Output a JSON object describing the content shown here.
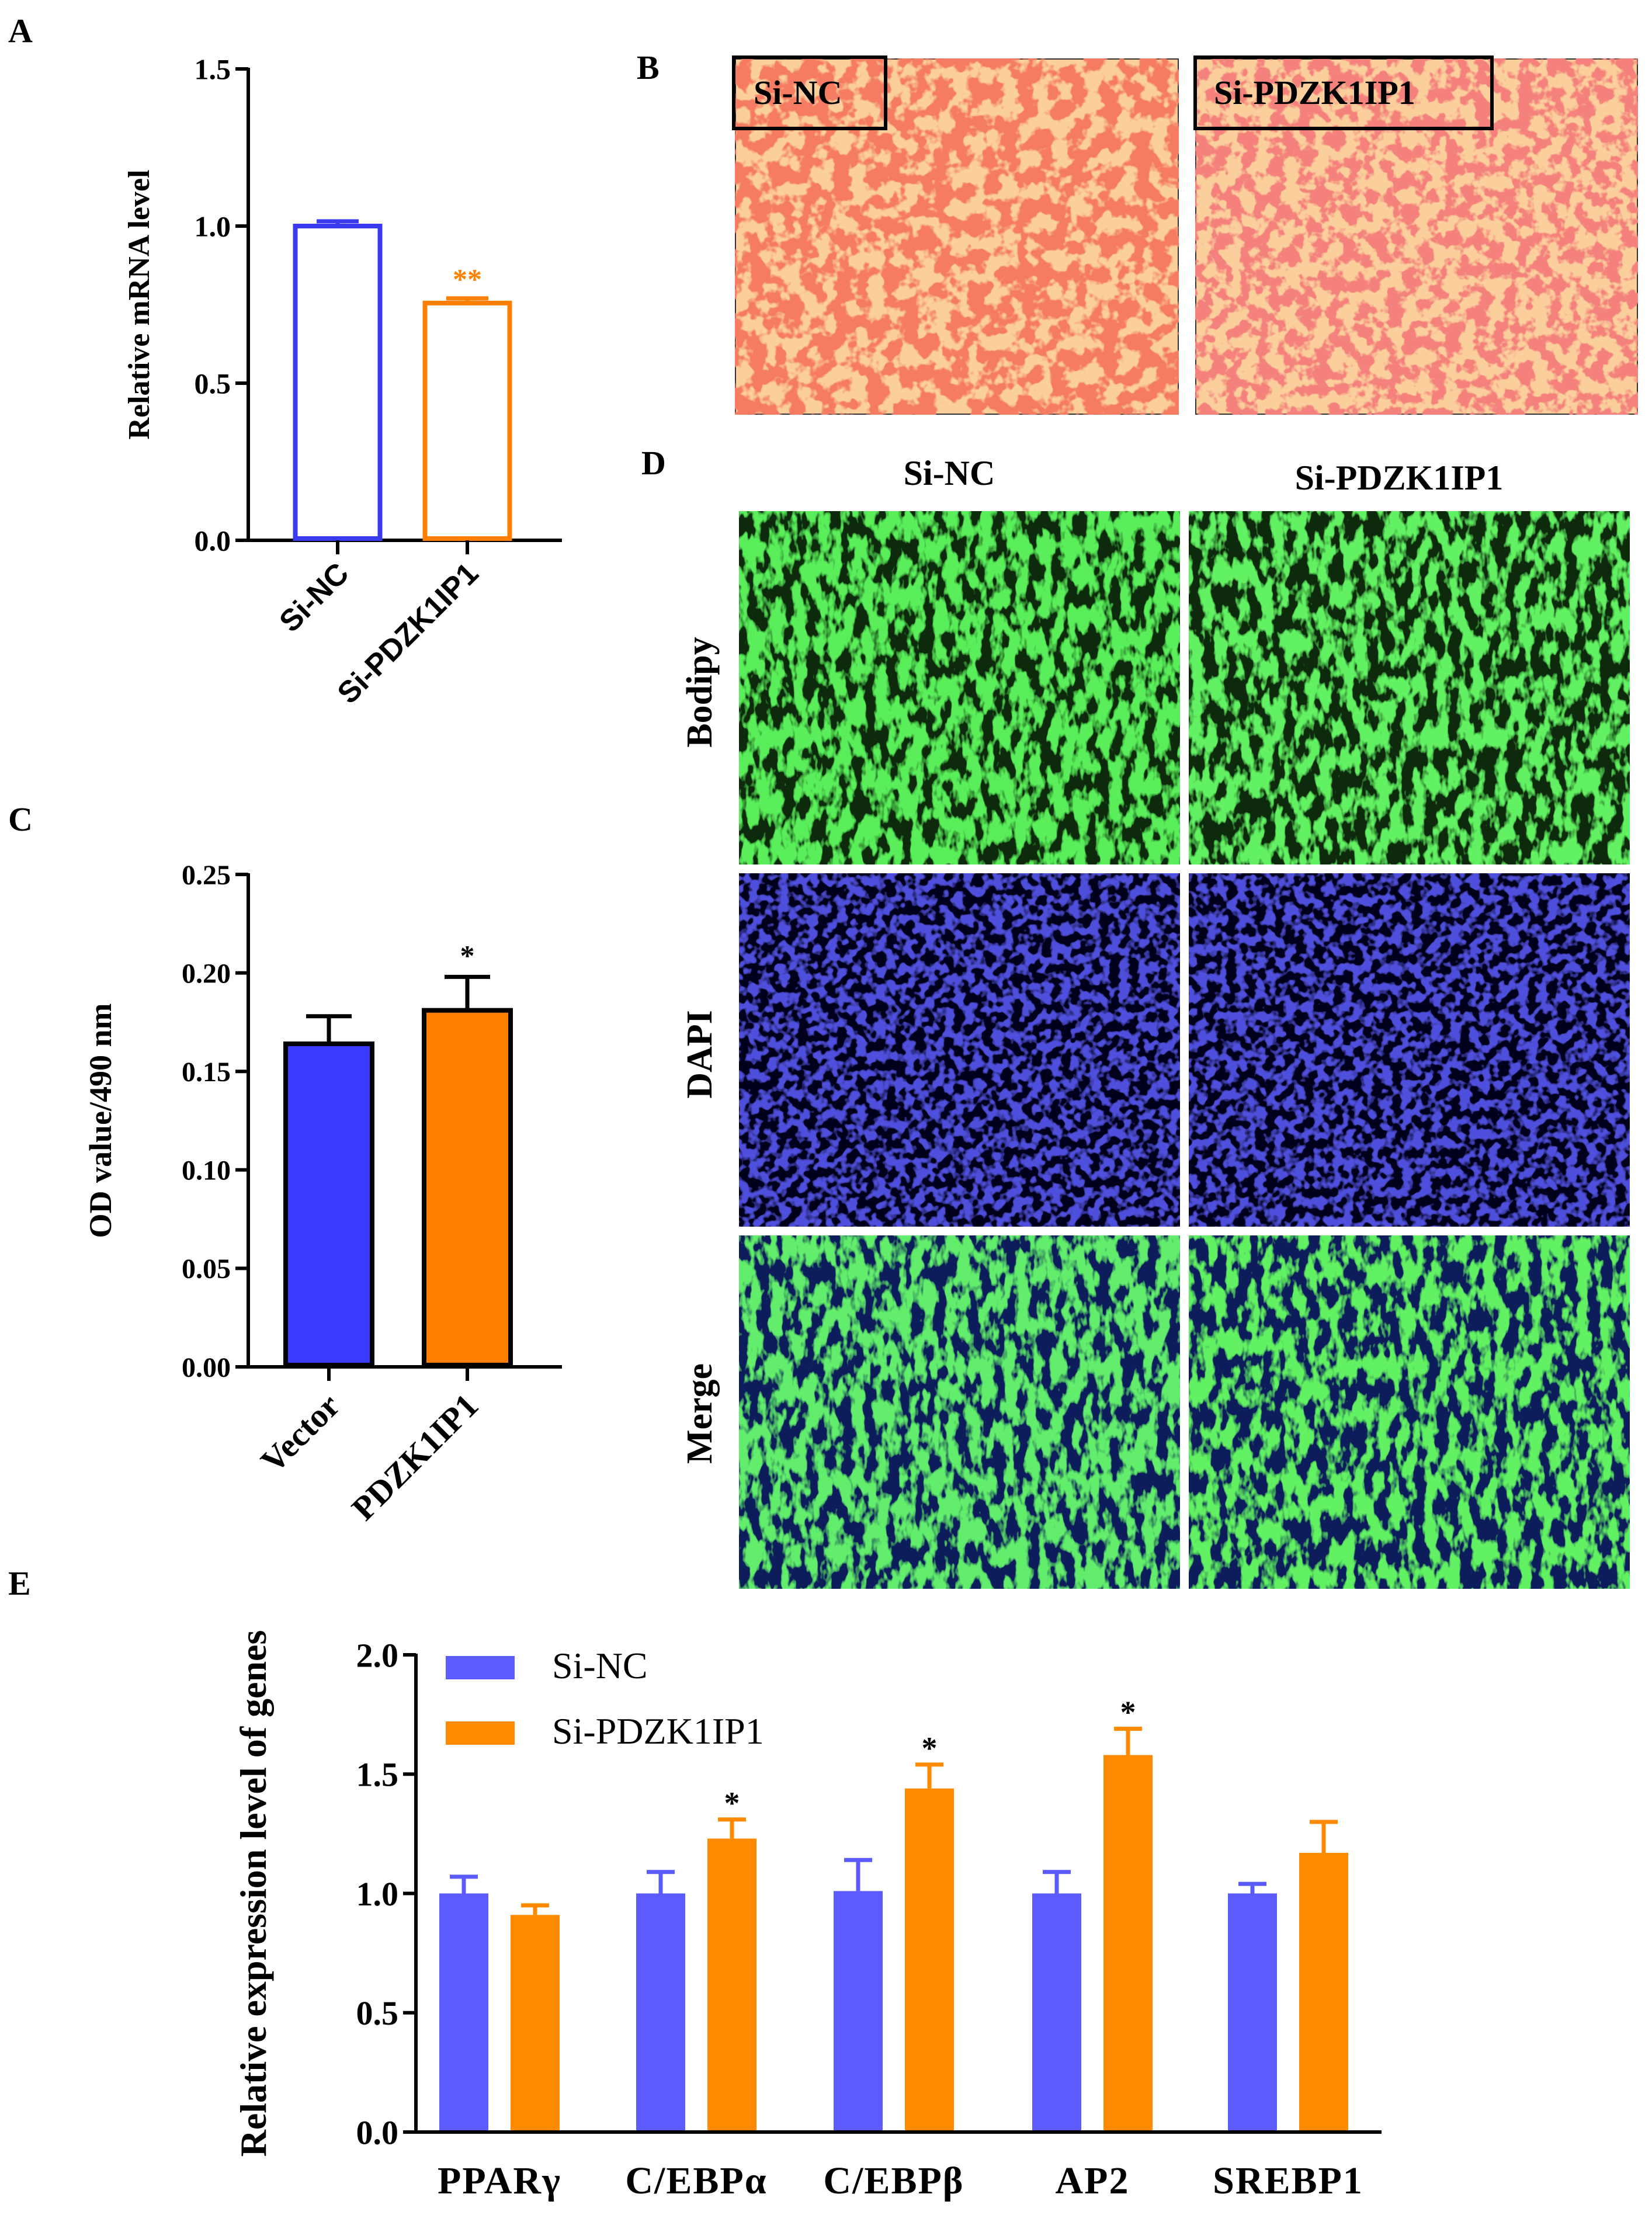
{
  "panels": {
    "A": "A",
    "B": "B",
    "C": "C",
    "D": "D",
    "E": "E"
  },
  "panel_b": {
    "labels": [
      "Si-NC",
      "Si-PDZK1IP1"
    ]
  },
  "panel_d": {
    "columns": [
      "Si-NC",
      "Si-PDZK1IP1"
    ],
    "rows": [
      "Bodipy",
      "DAPI",
      "Merge"
    ]
  },
  "colors": {
    "blue_outline": "#3a3af0",
    "orange": "#ff8000",
    "blue_fill": "#3b3bff",
    "e_blue": "#5b5bff",
    "e_orange": "#ff8a00",
    "oil_bg": "#fbcf9c",
    "oil_drop": "#e8321e",
    "bodipy": "#2ed62e",
    "dapi": "#1818b8"
  },
  "chart_data": [
    {
      "id": "A",
      "type": "bar",
      "style": "outline",
      "title": "",
      "xlabel": "",
      "ylabel": "Relative mRNA level",
      "categories": [
        "Si-NC",
        "Si-PDZK1IP1"
      ],
      "values": [
        1.0,
        0.755
      ],
      "errors": [
        0.015,
        0.015
      ],
      "significance": [
        "",
        "**"
      ],
      "ylim": [
        0,
        1.5
      ],
      "yticks": [
        "0.0",
        "0.5",
        "1.0",
        "1.5"
      ],
      "colors": [
        "#3a3af0",
        "#ff8000"
      ]
    },
    {
      "id": "C",
      "type": "bar",
      "style": "filled",
      "title": "",
      "xlabel": "",
      "ylabel": "OD value/490 nm",
      "categories": [
        "Vector",
        "PDZK1IP1"
      ],
      "values": [
        0.164,
        0.181
      ],
      "errors": [
        0.014,
        0.017
      ],
      "significance": [
        "",
        "*"
      ],
      "ylim": [
        0,
        0.25
      ],
      "yticks": [
        "0.00",
        "0.05",
        "0.10",
        "0.15",
        "0.20",
        "0.25"
      ],
      "colors": [
        "#3b3bff",
        "#ff8000"
      ]
    },
    {
      "id": "E",
      "type": "bar",
      "title": "",
      "xlabel": "",
      "ylabel": "Relative expression level of genes",
      "categories": [
        "PPARγ",
        "C/EBPα",
        "C/EBPβ",
        "AP2",
        "SREBP1"
      ],
      "series": [
        {
          "name": "Si-NC",
          "values": [
            1.0,
            1.0,
            1.01,
            1.0,
            1.0
          ],
          "errors": [
            0.07,
            0.09,
            0.13,
            0.09,
            0.04
          ]
        },
        {
          "name": "Si-PDZK1IP1",
          "values": [
            0.91,
            1.23,
            1.44,
            1.58,
            1.17
          ],
          "errors": [
            0.04,
            0.08,
            0.1,
            0.11,
            0.13
          ]
        }
      ],
      "significance": [
        "",
        "*",
        "*",
        "*",
        ""
      ],
      "ylim": [
        0,
        2.0
      ],
      "yticks": [
        "0.0",
        "0.5",
        "1.0",
        "1.5",
        "2.0"
      ],
      "legend_position": "top-left",
      "colors": [
        "#5b5bff",
        "#ff8a00"
      ]
    }
  ]
}
